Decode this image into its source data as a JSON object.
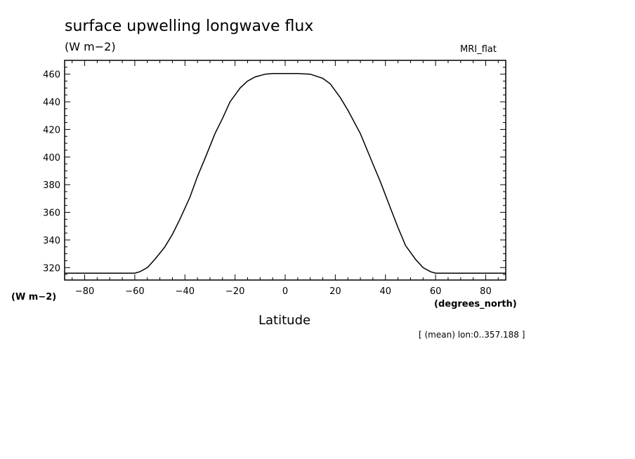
{
  "chart_data": {
    "type": "line",
    "title": "surface upwelling longwave flux",
    "units_label": "(W m−2)",
    "dataset_label": "MRI_flat",
    "y_units_label": "(W m−2)",
    "x_units_label": "(degrees_north)",
    "xlabel": "Latitude",
    "subset_label": "[ (mean) lon:0..357.188 ]",
    "xlim": [
      -88,
      88
    ],
    "ylim": [
      311,
      470
    ],
    "x_ticks": [
      -80,
      -60,
      -40,
      -20,
      0,
      20,
      40,
      60,
      80
    ],
    "x_tick_labels": [
      "−80",
      "−60",
      "−40",
      "−20",
      "0",
      "20",
      "40",
      "60",
      "80"
    ],
    "y_ticks": [
      320,
      340,
      360,
      380,
      400,
      420,
      440,
      460
    ],
    "y_tick_labels": [
      "320",
      "340",
      "360",
      "380",
      "400",
      "420",
      "440",
      "460"
    ],
    "grid": false,
    "series": [
      {
        "x": [
          -88,
          -60,
          -58,
          -55,
          -52,
          -48,
          -45,
          -42,
          -38,
          -35,
          -32,
          -28,
          -25,
          -22,
          -18,
          -15,
          -12,
          -8,
          -5,
          0,
          5,
          10,
          15,
          18,
          22,
          25,
          30,
          35,
          38,
          42,
          45,
          48,
          52,
          55,
          58,
          60,
          88
        ],
        "y": [
          316,
          316,
          317,
          320,
          326,
          335,
          344,
          355,
          371,
          386,
          399,
          417,
          428,
          440,
          450,
          455,
          458,
          460,
          460.5,
          460.5,
          460.5,
          460,
          457,
          453,
          443,
          434,
          417,
          395,
          382,
          363,
          349,
          336,
          326,
          320,
          317,
          316,
          316
        ]
      }
    ]
  }
}
